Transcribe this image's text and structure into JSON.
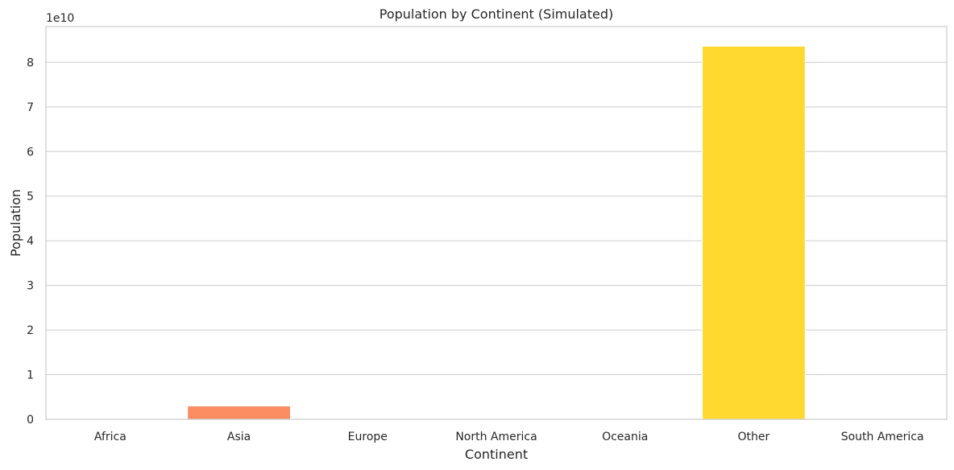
{
  "chart_data": {
    "type": "bar",
    "title": "Population by Continent (Simulated)",
    "xlabel": "Continent",
    "ylabel": "Population",
    "y_offset_label": "1e10",
    "categories": [
      "Africa",
      "Asia",
      "Europe",
      "North America",
      "Oceania",
      "Other",
      "South America"
    ],
    "values": [
      0,
      3000000000,
      0,
      0,
      0,
      83600000000,
      0
    ],
    "colors": [
      "#66c2a5",
      "#fc8d62",
      "#8da0cb",
      "#e78ac3",
      "#a6d854",
      "#ffd92f",
      "#e5c494"
    ],
    "ylim": [
      0,
      88000000000
    ],
    "yticks": [
      0,
      10000000000,
      20000000000,
      30000000000,
      40000000000,
      50000000000,
      60000000000,
      70000000000,
      80000000000
    ],
    "ytick_labels": [
      "0",
      "1",
      "2",
      "3",
      "4",
      "5",
      "6",
      "7",
      "8"
    ],
    "grid": true,
    "legend": "none"
  }
}
